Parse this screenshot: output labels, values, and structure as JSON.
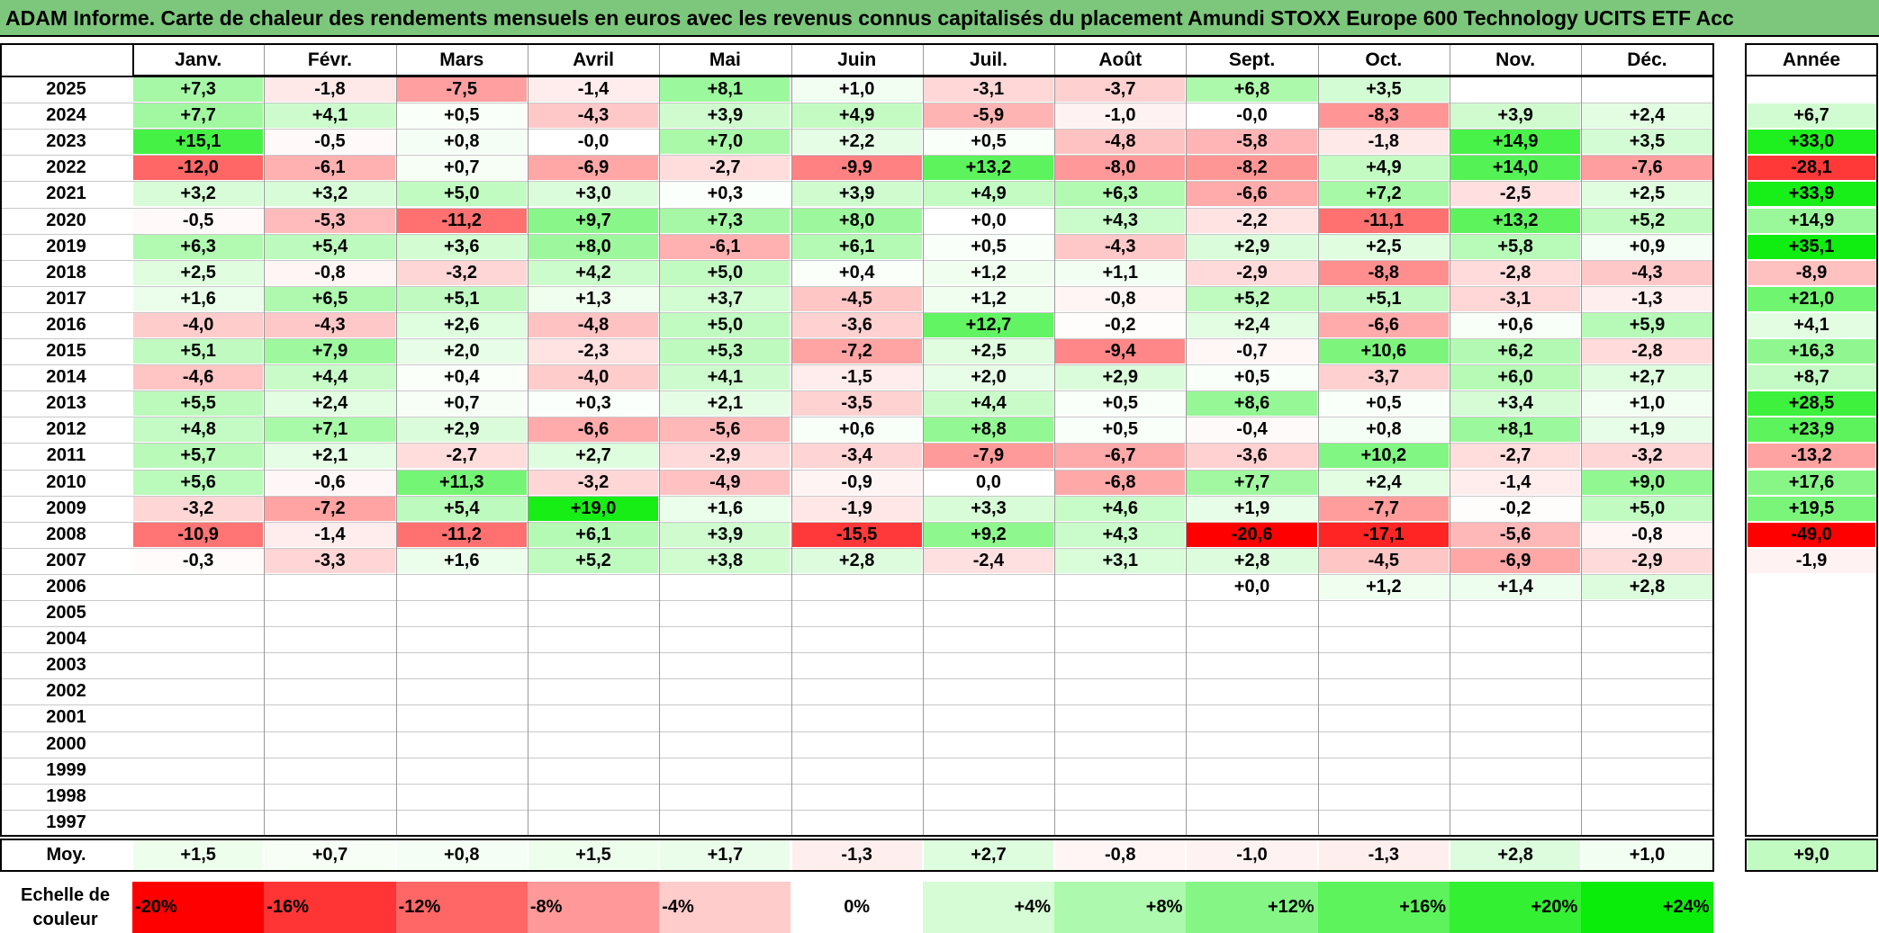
{
  "title": "ADAM Informe. Carte de chaleur des rendements mensuels en euros avec les revenus connus capitalisés du placement Amundi STOXX Europe 600 Technology UCITS ETF Acc",
  "chart_data": {
    "type": "heatmap",
    "title": "ADAM Informe. Carte de chaleur des rendements mensuels en euros avec les revenus connus capitalisés du placement Amundi STOXX Europe 600 Technology UCITS ETF Acc",
    "months": [
      "Janv.",
      "Févr.",
      "Mars",
      "Avril",
      "Mai",
      "Juin",
      "Juil.",
      "Août",
      "Sept.",
      "Oct.",
      "Nov.",
      "Déc."
    ],
    "year_header": "Année",
    "rows": [
      {
        "year": "2025",
        "values": [
          "+7,3",
          "-1,8",
          "-7,5",
          "-1,4",
          "+8,1",
          "+1,0",
          "-3,1",
          "-3,7",
          "+6,8",
          "+3,5",
          "",
          ""
        ],
        "annual": ""
      },
      {
        "year": "2024",
        "values": [
          "+7,7",
          "+4,1",
          "+0,5",
          "-4,3",
          "+3,9",
          "+4,9",
          "-5,9",
          "-1,0",
          "-0,0",
          "-8,3",
          "+3,9",
          "+2,4"
        ],
        "annual": "+6,7"
      },
      {
        "year": "2023",
        "values": [
          "+15,1",
          "-0,5",
          "+0,8",
          "-0,0",
          "+7,0",
          "+2,2",
          "+0,5",
          "-4,8",
          "-5,8",
          "-1,8",
          "+14,9",
          "+3,5"
        ],
        "annual": "+33,0"
      },
      {
        "year": "2022",
        "values": [
          "-12,0",
          "-6,1",
          "+0,7",
          "-6,9",
          "-2,7",
          "-9,9",
          "+13,2",
          "-8,0",
          "-8,2",
          "+4,9",
          "+14,0",
          "-7,6"
        ],
        "annual": "-28,1"
      },
      {
        "year": "2021",
        "values": [
          "+3,2",
          "+3,2",
          "+5,0",
          "+3,0",
          "+0,3",
          "+3,9",
          "+4,9",
          "+6,3",
          "-6,6",
          "+7,2",
          "-2,5",
          "+2,5"
        ],
        "annual": "+33,9"
      },
      {
        "year": "2020",
        "values": [
          "-0,5",
          "-5,3",
          "-11,2",
          "+9,7",
          "+7,3",
          "+8,0",
          "+0,0",
          "+4,3",
          "-2,2",
          "-11,1",
          "+13,2",
          "+5,2"
        ],
        "annual": "+14,9"
      },
      {
        "year": "2019",
        "values": [
          "+6,3",
          "+5,4",
          "+3,6",
          "+8,0",
          "-6,1",
          "+6,1",
          "+0,5",
          "-4,3",
          "+2,9",
          "+2,5",
          "+5,8",
          "+0,9"
        ],
        "annual": "+35,1"
      },
      {
        "year": "2018",
        "values": [
          "+2,5",
          "-0,8",
          "-3,2",
          "+4,2",
          "+5,0",
          "+0,4",
          "+1,2",
          "+1,1",
          "-2,9",
          "-8,8",
          "-2,8",
          "-4,3"
        ],
        "annual": "-8,9"
      },
      {
        "year": "2017",
        "values": [
          "+1,6",
          "+6,5",
          "+5,1",
          "+1,3",
          "+3,7",
          "-4,5",
          "+1,2",
          "-0,8",
          "+5,2",
          "+5,1",
          "-3,1",
          "-1,3"
        ],
        "annual": "+21,0"
      },
      {
        "year": "2016",
        "values": [
          "-4,0",
          "-4,3",
          "+2,6",
          "-4,8",
          "+5,0",
          "-3,6",
          "+12,7",
          "-0,2",
          "+2,4",
          "-6,6",
          "+0,6",
          "+5,9"
        ],
        "annual": "+4,1"
      },
      {
        "year": "2015",
        "values": [
          "+5,1",
          "+7,9",
          "+2,0",
          "-2,3",
          "+5,3",
          "-7,2",
          "+2,5",
          "-9,4",
          "-0,7",
          "+10,6",
          "+6,2",
          "-2,8"
        ],
        "annual": "+16,3"
      },
      {
        "year": "2014",
        "values": [
          "-4,6",
          "+4,4",
          "+0,4",
          "-4,0",
          "+4,1",
          "-1,5",
          "+2,0",
          "+2,9",
          "+0,5",
          "-3,7",
          "+6,0",
          "+2,7"
        ],
        "annual": "+8,7"
      },
      {
        "year": "2013",
        "values": [
          "+5,5",
          "+2,4",
          "+0,7",
          "+0,3",
          "+2,1",
          "-3,5",
          "+4,4",
          "+0,5",
          "+8,6",
          "+0,5",
          "+3,4",
          "+1,0"
        ],
        "annual": "+28,5"
      },
      {
        "year": "2012",
        "values": [
          "+4,8",
          "+7,1",
          "+2,9",
          "-6,6",
          "-5,6",
          "+0,6",
          "+8,8",
          "+0,5",
          "-0,4",
          "+0,8",
          "+8,1",
          "+1,9"
        ],
        "annual": "+23,9"
      },
      {
        "year": "2011",
        "values": [
          "+5,7",
          "+2,1",
          "-2,7",
          "+2,7",
          "-2,9",
          "-3,4",
          "-7,9",
          "-6,7",
          "-3,6",
          "+10,2",
          "-2,7",
          "-3,2"
        ],
        "annual": "-13,2"
      },
      {
        "year": "2010",
        "values": [
          "+5,6",
          "-0,6",
          "+11,3",
          "-3,2",
          "-4,9",
          "-0,9",
          "0,0",
          "-6,8",
          "+7,7",
          "+2,4",
          "-1,4",
          "+9,0"
        ],
        "annual": "+17,6"
      },
      {
        "year": "2009",
        "values": [
          "-3,2",
          "-7,2",
          "+5,4",
          "+19,0",
          "+1,6",
          "-1,9",
          "+3,3",
          "+4,6",
          "+1,9",
          "-7,7",
          "-0,2",
          "+5,0"
        ],
        "annual": "+19,5"
      },
      {
        "year": "2008",
        "values": [
          "-10,9",
          "-1,4",
          "-11,2",
          "+6,1",
          "+3,9",
          "-15,5",
          "+9,2",
          "+4,3",
          "-20,6",
          "-17,1",
          "-5,6",
          "-0,8"
        ],
        "annual": "-49,0"
      },
      {
        "year": "2007",
        "values": [
          "-0,3",
          "-3,3",
          "+1,6",
          "+5,2",
          "+3,8",
          "+2,8",
          "-2,4",
          "+3,1",
          "+2,8",
          "-4,5",
          "-6,9",
          "-2,9"
        ],
        "annual": "-1,9"
      },
      {
        "year": "2006",
        "values": [
          "",
          "",
          "",
          "",
          "",
          "",
          "",
          "",
          "+0,0",
          "+1,2",
          "+1,4",
          "+2,8"
        ],
        "annual": ""
      },
      {
        "year": "2005",
        "values": [
          "",
          "",
          "",
          "",
          "",
          "",
          "",
          "",
          "",
          "",
          "",
          ""
        ],
        "annual": ""
      },
      {
        "year": "2004",
        "values": [
          "",
          "",
          "",
          "",
          "",
          "",
          "",
          "",
          "",
          "",
          "",
          ""
        ],
        "annual": ""
      },
      {
        "year": "2003",
        "values": [
          "",
          "",
          "",
          "",
          "",
          "",
          "",
          "",
          "",
          "",
          "",
          ""
        ],
        "annual": ""
      },
      {
        "year": "2002",
        "values": [
          "",
          "",
          "",
          "",
          "",
          "",
          "",
          "",
          "",
          "",
          "",
          ""
        ],
        "annual": ""
      },
      {
        "year": "2001",
        "values": [
          "",
          "",
          "",
          "",
          "",
          "",
          "",
          "",
          "",
          "",
          "",
          ""
        ],
        "annual": ""
      },
      {
        "year": "2000",
        "values": [
          "",
          "",
          "",
          "",
          "",
          "",
          "",
          "",
          "",
          "",
          "",
          ""
        ],
        "annual": ""
      },
      {
        "year": "1999",
        "values": [
          "",
          "",
          "",
          "",
          "",
          "",
          "",
          "",
          "",
          "",
          "",
          ""
        ],
        "annual": ""
      },
      {
        "year": "1998",
        "values": [
          "",
          "",
          "",
          "",
          "",
          "",
          "",
          "",
          "",
          "",
          "",
          ""
        ],
        "annual": ""
      },
      {
        "year": "1997",
        "values": [
          "",
          "",
          "",
          "",
          "",
          "",
          "",
          "",
          "",
          "",
          "",
          ""
        ],
        "annual": ""
      }
    ],
    "average": {
      "label": "Moy.",
      "values": [
        "+1,5",
        "+0,7",
        "+0,8",
        "+1,5",
        "+1,7",
        "-1,3",
        "+2,7",
        "-0,8",
        "-1,0",
        "-1,3",
        "+2,8",
        "+1,0"
      ],
      "annual": "+9,0"
    },
    "color_scale": {
      "label_line1": "Echelle de",
      "label_line2": "couleur",
      "steps": [
        {
          "label": "-20%",
          "value": -20,
          "color": "#ff0000"
        },
        {
          "label": "-16%",
          "value": -16,
          "color": "#ff3434"
        },
        {
          "label": "-12%",
          "value": -12,
          "color": "#ff6666"
        },
        {
          "label": "-8%",
          "value": -8,
          "color": "#ff9999"
        },
        {
          "label": "-4%",
          "value": -4,
          "color": "#ffcccc"
        },
        {
          "label": "0%",
          "value": 0,
          "color": "#ffffff"
        },
        {
          "label": "+4%",
          "value": 4,
          "color": "#d6fcd6"
        },
        {
          "label": "+8%",
          "value": 8,
          "color": "#adf9ad"
        },
        {
          "label": "+12%",
          "value": 12,
          "color": "#85f685"
        },
        {
          "label": "+16%",
          "value": 16,
          "color": "#5cf35c"
        },
        {
          "label": "+20%",
          "value": 20,
          "color": "#33f033"
        },
        {
          "label": "+24%",
          "value": 24,
          "color": "#0aed0a"
        }
      ]
    }
  }
}
